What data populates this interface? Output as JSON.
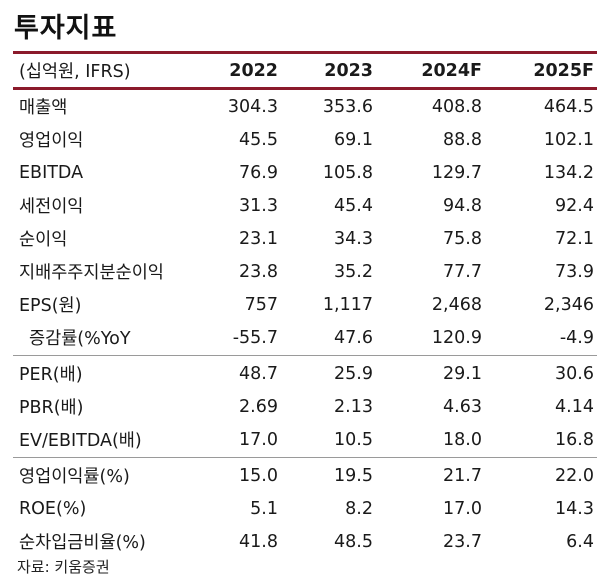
{
  "title": "투자지표",
  "header": {
    "unit_label": "(십억원, IFRS)",
    "years": [
      "2022",
      "2023",
      "2024F",
      "2025F"
    ]
  },
  "groups": [
    {
      "rows": [
        {
          "label": "매출액",
          "values": [
            "304.3",
            "353.6",
            "408.8",
            "464.5"
          ]
        },
        {
          "label": "영업이익",
          "values": [
            "45.5",
            "69.1",
            "88.8",
            "102.1"
          ]
        },
        {
          "label": "EBITDA",
          "values": [
            "76.9",
            "105.8",
            "129.7",
            "134.2"
          ]
        },
        {
          "label": "세전이익",
          "values": [
            "31.3",
            "45.4",
            "94.8",
            "92.4"
          ]
        },
        {
          "label": "순이익",
          "values": [
            "23.1",
            "34.3",
            "75.8",
            "72.1"
          ]
        },
        {
          "label": "지배주주지분순이익",
          "values": [
            "23.8",
            "35.2",
            "77.7",
            "73.9"
          ]
        },
        {
          "label": "EPS(원)",
          "values": [
            "757",
            "1,117",
            "2,468",
            "2,346"
          ]
        },
        {
          "label": "증감률(%YoY",
          "values": [
            "-55.7",
            "47.6",
            "120.9",
            "-4.9"
          ],
          "indent": true
        }
      ]
    },
    {
      "rows": [
        {
          "label": "PER(배)",
          "values": [
            "48.7",
            "25.9",
            "29.1",
            "30.6"
          ]
        },
        {
          "label": "PBR(배)",
          "values": [
            "2.69",
            "2.13",
            "4.63",
            "4.14"
          ]
        },
        {
          "label": "EV/EBITDA(배)",
          "values": [
            "17.0",
            "10.5",
            "18.0",
            "16.8"
          ]
        }
      ]
    },
    {
      "rows": [
        {
          "label": "영업이익률(%)",
          "values": [
            "15.0",
            "19.5",
            "21.7",
            "22.0"
          ]
        },
        {
          "label": "ROE(%)",
          "values": [
            "5.1",
            "8.2",
            "17.0",
            "14.3"
          ]
        },
        {
          "label": "순차입금비율(%)",
          "values": [
            "41.8",
            "48.5",
            "23.7",
            "6.4"
          ]
        }
      ]
    }
  ],
  "source": "자료: 키움증권",
  "colors": {
    "accent_rule": "#8b1a2b",
    "divider": "#9a9a9a"
  }
}
